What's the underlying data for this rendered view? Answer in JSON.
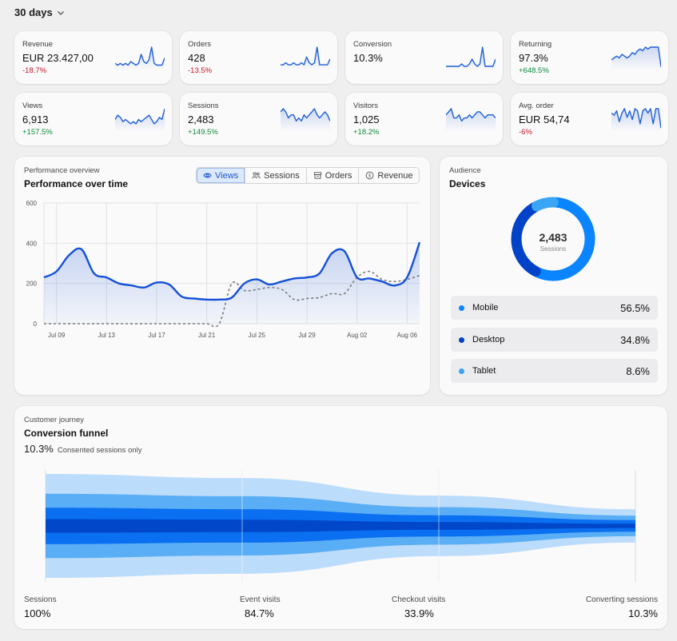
{
  "range": {
    "label": "30 days"
  },
  "kpis": [
    {
      "label": "Revenue",
      "value": "EUR 23.427,00",
      "delta": "-18.7%",
      "trend": "down",
      "spark": [
        3,
        2,
        3,
        2,
        3,
        2,
        4,
        3,
        2,
        3,
        8,
        4,
        3,
        5,
        12,
        3,
        2,
        2,
        2,
        6
      ]
    },
    {
      "label": "Orders",
      "value": "428",
      "delta": "-13.5%",
      "trend": "down",
      "spark": [
        2,
        2,
        3,
        2,
        2,
        3,
        2,
        2,
        3,
        2,
        6,
        3,
        2,
        3,
        11,
        2,
        2,
        2,
        2,
        5
      ]
    },
    {
      "label": "Conversion",
      "value": "10.3%",
      "delta": "",
      "trend": "none",
      "spark": [
        1,
        1,
        1,
        1,
        1,
        1,
        2,
        1,
        1,
        2,
        4,
        2,
        1,
        2,
        9,
        1,
        1,
        1,
        1,
        4
      ]
    },
    {
      "label": "Returning",
      "value": "97.3%",
      "delta": "+648.5%",
      "trend": "up",
      "spark": [
        5,
        6,
        7,
        6,
        8,
        7,
        6,
        7,
        9,
        8,
        10,
        11,
        10,
        12,
        11,
        12,
        12,
        12,
        12,
        1
      ]
    },
    {
      "label": "Views",
      "value": "6,913",
      "delta": "+157.5%",
      "trend": "up",
      "spark": [
        5,
        7,
        6,
        4,
        5,
        4,
        3,
        4,
        3,
        5,
        4,
        5,
        6,
        7,
        5,
        3,
        4,
        6,
        5,
        10
      ]
    },
    {
      "label": "Sessions",
      "value": "2,483",
      "delta": "+149.5%",
      "trend": "up",
      "spark": [
        6,
        7,
        6,
        4,
        5,
        5,
        3,
        4,
        3,
        5,
        4,
        5,
        6,
        7,
        5,
        4,
        5,
        6,
        5,
        3
      ]
    },
    {
      "label": "Visitors",
      "value": "1,025",
      "delta": "+18.2%",
      "trend": "up",
      "spark": [
        5,
        6,
        7,
        4,
        4,
        5,
        3,
        4,
        4,
        5,
        4,
        5,
        6,
        6,
        5,
        4,
        5,
        5,
        5,
        4
      ]
    },
    {
      "label": "Avg. order",
      "value": "EUR 54,74",
      "delta": "-6%",
      "trend": "down",
      "spark": [
        8,
        7,
        9,
        4,
        8,
        10,
        6,
        9,
        5,
        10,
        9,
        3,
        9,
        10,
        8,
        10,
        3,
        10,
        10,
        1
      ]
    }
  ],
  "performance": {
    "eyebrow": "Performance overview",
    "title": "Performance over time",
    "tabs": [
      {
        "label": "Views",
        "icon": "eye-icon",
        "active": true
      },
      {
        "label": "Sessions",
        "icon": "users-icon",
        "active": false
      },
      {
        "label": "Orders",
        "icon": "box-icon",
        "active": false
      },
      {
        "label": "Revenue",
        "icon": "coin-icon",
        "active": false
      }
    ]
  },
  "chart_data": {
    "type": "line",
    "x": [
      "Jul 08",
      "Jul 09",
      "Jul 10",
      "Jul 11",
      "Jul 12",
      "Jul 13",
      "Jul 14",
      "Jul 15",
      "Jul 16",
      "Jul 17",
      "Jul 18",
      "Jul 19",
      "Jul 20",
      "Jul 21",
      "Jul 22",
      "Jul 23",
      "Jul 24",
      "Jul 25",
      "Jul 26",
      "Jul 27",
      "Jul 28",
      "Jul 29",
      "Jul 30",
      "Jul 31",
      "Aug 01",
      "Aug 02",
      "Aug 03",
      "Aug 04",
      "Aug 05",
      "Aug 06",
      "Aug 07"
    ],
    "x_ticks": [
      "Jul 09",
      "Jul 13",
      "Jul 17",
      "Jul 21",
      "Jul 25",
      "Jul 29",
      "Aug 02",
      "Aug 06"
    ],
    "ylim": [
      0,
      600
    ],
    "y_ticks": [
      0,
      200,
      400,
      600
    ],
    "series": [
      {
        "style": "solid",
        "values": [
          230,
          260,
          340,
          370,
          250,
          230,
          200,
          190,
          180,
          205,
          195,
          135,
          125,
          120,
          120,
          130,
          200,
          220,
          195,
          210,
          225,
          230,
          250,
          350,
          360,
          230,
          225,
          210,
          190,
          230,
          405
        ]
      },
      {
        "style": "dashed",
        "values": [
          0,
          0,
          0,
          0,
          0,
          0,
          0,
          0,
          0,
          0,
          0,
          0,
          0,
          0,
          0,
          200,
          165,
          170,
          180,
          170,
          120,
          125,
          130,
          150,
          150,
          230,
          260,
          220,
          210,
          220,
          240
        ]
      }
    ],
    "grid": true
  },
  "devices": {
    "eyebrow": "Audience",
    "title": "Devices",
    "total": "2,483",
    "total_label": "Sessions",
    "items": [
      {
        "name": "Mobile",
        "pct": "56.5%",
        "value": 56.5,
        "color": "#0a84ff"
      },
      {
        "name": "Desktop",
        "pct": "34.8%",
        "value": 34.8,
        "color": "#0043c8"
      },
      {
        "name": "Tablet",
        "pct": "8.6%",
        "value": 8.6,
        "color": "#3aa5f5"
      }
    ]
  },
  "funnel": {
    "eyebrow": "Customer journey",
    "title": "Conversion funnel",
    "rate": "10.3%",
    "note": "Consented sessions only",
    "stages": [
      {
        "label": "Sessions",
        "pct": "100%",
        "value": 100
      },
      {
        "label": "Event visits",
        "pct": "84.7%",
        "value": 84.7
      },
      {
        "label": "Checkout visits",
        "pct": "33.9%",
        "value": 33.9
      },
      {
        "label": "Converting sessions",
        "pct": "10.3%",
        "value": 10.3
      }
    ]
  }
}
